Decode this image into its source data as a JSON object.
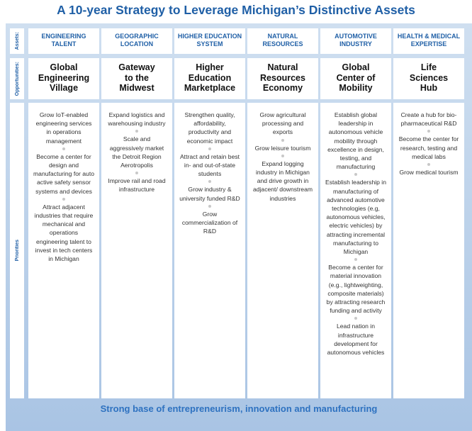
{
  "title": "A 10-year Strategy to Leverage Michigan’s Distinctive Assets",
  "row_labels": {
    "assets": "Assets:",
    "opportunities": "Opportunities:",
    "priorities": "Priorities"
  },
  "columns": [
    {
      "asset": [
        "ENGINEERING",
        "TALENT"
      ],
      "opportunity": [
        "Global",
        "Engineering",
        "Village"
      ],
      "priorities": [
        "Grow IoT-enabled engineering services in operations management",
        "Become a center for design and manufacturing for auto active safety sensor systems and devices",
        "Attract adjacent industries that require mechanical and operations engineering talent to invest in tech centers in Michigan"
      ]
    },
    {
      "asset": [
        "GEOGRAPHIC",
        "LOCATION"
      ],
      "opportunity": [
        "Gateway",
        "to the",
        "Midwest"
      ],
      "priorities": [
        "Expand logistics and warehousing industry",
        "Scale and aggressively market the Detroit Region Aerotropolis",
        "Improve rail and road infrastructure"
      ]
    },
    {
      "asset": [
        "HIGHER EDUCATION",
        "SYSTEM"
      ],
      "opportunity": [
        "Higher",
        "Education",
        "Marketplace"
      ],
      "priorities": [
        "Strengthen quality, affordability, productivity and economic impact",
        "Attract and retain best in- and out-of-state students",
        "Grow industry & university funded R&D",
        "Grow commercialization of R&D"
      ]
    },
    {
      "asset": [
        "NATURAL",
        "RESOURCES"
      ],
      "opportunity": [
        "Natural",
        "Resources",
        "Economy"
      ],
      "priorities": [
        "Grow agricultural processing and exports",
        "Grow leisure tourism",
        "Expand logging industry in Michigan and drive growth in adjacent/ downstream industries"
      ]
    },
    {
      "asset": [
        "AUTOMOTIVE",
        "INDUSTRY"
      ],
      "opportunity": [
        "Global",
        "Center of",
        "Mobility"
      ],
      "priorities": [
        "Establish global leadership in autonomous vehicle mobility through excellence in design, testing, and manufacturing",
        "Establish leadership in manufacturing of advanced automotive technologies (e.g, autonomous vehicles, electric vehicles) by attracting incremental manufacturing to Michigan",
        "Become a center for material innovation (e.g., lightweighting, composite materials) by attracting research funding and activity",
        "Lead nation in infrastructure development for autonomous vehicles"
      ]
    },
    {
      "asset": [
        "HEALTH & MEDICAL",
        "EXPERTISE"
      ],
      "opportunity": [
        "Life",
        "Sciences",
        "Hub"
      ],
      "priorities": [
        "Create a hub for bio-pharmaceutical R&D",
        "Become the center for research, testing and medical labs",
        "Grow medical tourism"
      ]
    }
  ],
  "footer": "Strong base of entrepreneurism, innovation and manufacturing"
}
